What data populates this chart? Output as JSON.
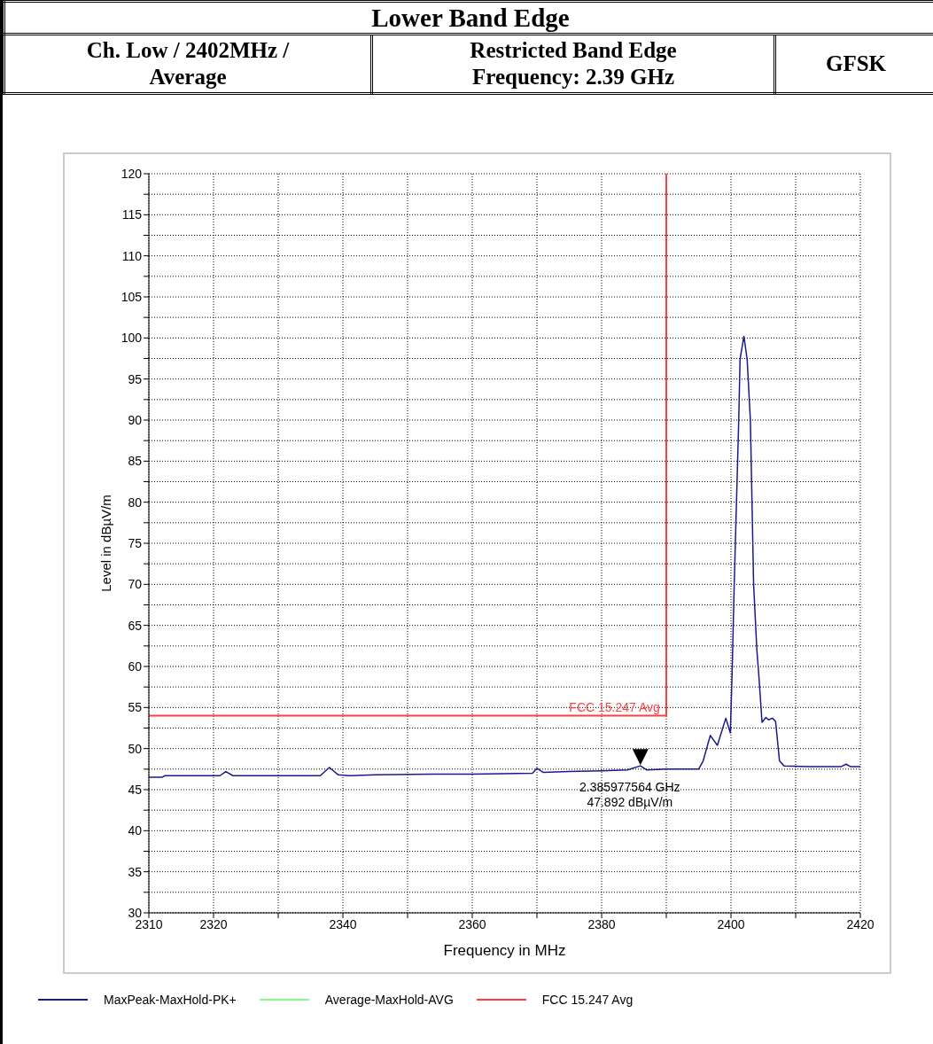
{
  "chart_data": {
    "type": "line",
    "title": "Lower Band Edge",
    "xlabel": "Frequency in MHz",
    "ylabel": "Level in dBµV/m",
    "annotations": [
      "Ch. Low / 2402MHz / Average",
      "Restricted Band Edge Frequency: 2.39 GHz",
      "GFSK",
      {
        "text": "FCC 15.247 Avg",
        "x": 2382,
        "y": 54
      },
      {
        "text": "2.385977564 GHz 47.892 dBµV/m",
        "x": 2386,
        "y": 47.892
      }
    ],
    "series": [
      {
        "name": "MaxPeak-MaxHold-PK+",
        "color": "#1a1a8c",
        "x": [
          2310,
          2312,
          2312.5,
          2320,
          2321,
          2321.9,
          2323,
          2324,
          2336.5,
          2337.9,
          2339.3,
          2341,
          2345,
          2353.7,
          2360,
          2369.3,
          2370,
          2371,
          2375,
          2380,
          2384,
          2386,
          2387,
          2390,
          2395,
          2395.7,
          2396.8,
          2397.9,
          2399.2,
          2399.9,
          2400.2,
          2400.5,
          2401.2,
          2401.4,
          2402,
          2402.5,
          2403,
          2403.5,
          2404,
          2404.3,
          2404.8,
          2405.4,
          2405.8,
          2406.4,
          2406.9,
          2407.5,
          2408.2,
          2412,
          2417,
          2417.8,
          2418.5,
          2420
        ],
        "values": [
          46.5,
          46.5,
          46.7,
          46.7,
          46.7,
          47.2,
          46.7,
          46.7,
          46.7,
          47.7,
          46.8,
          46.7,
          46.8,
          46.9,
          46.9,
          47.0,
          47.6,
          47.1,
          47.2,
          47.3,
          47.4,
          47.9,
          47.4,
          47.5,
          47.5,
          48.5,
          51.6,
          50.4,
          53.7,
          51.9,
          60,
          70,
          90,
          97.4,
          100.2,
          97.4,
          90,
          70,
          62,
          59,
          53.2,
          53.8,
          53.5,
          53.7,
          53.3,
          48.5,
          47.9,
          47.8,
          47.8,
          48.1,
          47.8,
          47.8
        ]
      },
      {
        "name": "Average-MaxHold-AVG",
        "color": "#80ff80"
      },
      {
        "name": "FCC 15.247 Avg",
        "color": "#ff4040",
        "x": [
          2310,
          2390,
          2390
        ],
        "values": [
          54,
          54,
          120
        ]
      }
    ],
    "xlim": [
      2310,
      2420
    ],
    "xticks": [
      2310,
      2320,
      {
        "value": 2330,
        "label": null
      },
      2340,
      {
        "value": 2350,
        "label": null
      },
      2360,
      {
        "value": 2370,
        "label": null
      },
      2380,
      {
        "value": 2390,
        "label": null
      },
      2400,
      {
        "value": 2410,
        "label": null
      },
      2420
    ],
    "ylim": [
      30,
      120
    ],
    "yticks": [
      30,
      {
        "value": 32.5,
        "label": null
      },
      35,
      {
        "value": 37.5,
        "label": null
      },
      40,
      {
        "value": 42.5,
        "label": null
      },
      45,
      {
        "value": 47.5,
        "label": null
      },
      50,
      {
        "value": 52.5,
        "label": null
      },
      55,
      {
        "value": 57.5,
        "label": null
      },
      60,
      {
        "value": 62.5,
        "label": null
      },
      65,
      {
        "value": 67.5,
        "label": null
      },
      70,
      {
        "value": 72.5,
        "label": null
      },
      75,
      {
        "value": 77.5,
        "label": null
      },
      80,
      {
        "value": 82.5,
        "label": null
      },
      85,
      {
        "value": 87.5,
        "label": null
      },
      90,
      {
        "value": 92.5,
        "label": null
      },
      95,
      {
        "value": 97.5,
        "label": null
      },
      100,
      {
        "value": 102.5,
        "label": null
      },
      105,
      {
        "value": 107.5,
        "label": null
      },
      110,
      {
        "value": 112.5,
        "label": null
      },
      115,
      {
        "value": 117.5,
        "label": null
      },
      120
    ],
    "grid": true,
    "legend": "bottom",
    "marker": "none",
    "line_style": "solid"
  }
}
